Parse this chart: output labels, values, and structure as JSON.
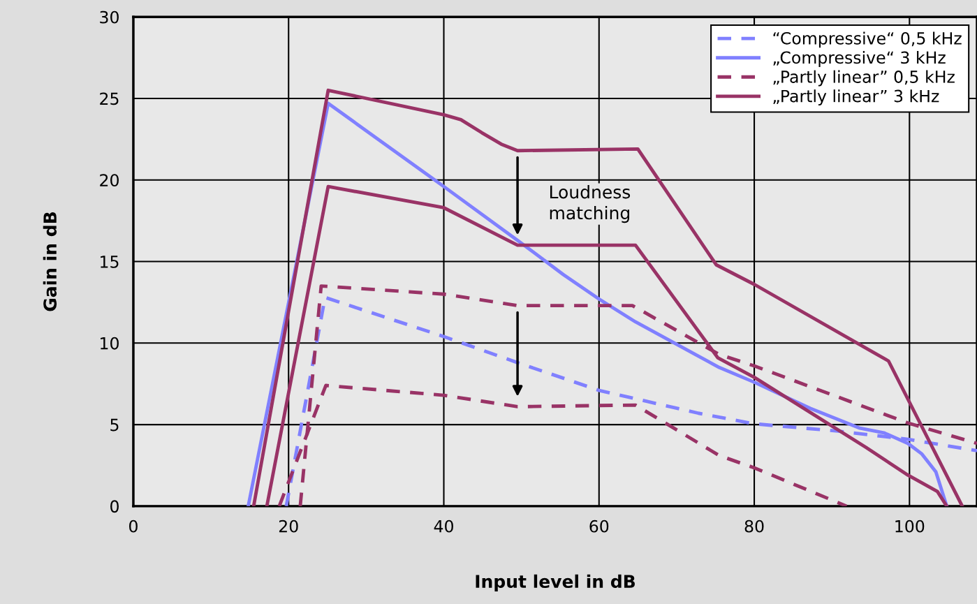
{
  "chart_data": {
    "type": "line",
    "xlabel": "Input level in dB",
    "ylabel": "Gain in dB",
    "xlim": [
      0,
      108.7
    ],
    "xticks": [
      0,
      20,
      40,
      60,
      80,
      100
    ],
    "ylim": [
      0,
      30
    ],
    "yticks": [
      0,
      5,
      10,
      15,
      20,
      25,
      30
    ],
    "grid": true,
    "legend": "top right",
    "marker": "none",
    "annotations": [
      {
        "text": "Loudness\nmatching",
        "x": 49.5,
        "y": 21.8
      }
    ],
    "series": [
      {
        "name": "“Compressive“ 0,5 kHz",
        "color": "#8080ff",
        "line_style": "dashed",
        "x": [
          19.7,
          24.7,
          40,
          49.5,
          60,
          72.8,
          80,
          90.8,
          99.8,
          108.7
        ],
        "values": [
          0,
          12.8,
          10.4,
          8.8,
          7.1,
          5.7,
          5.05,
          4.6,
          4.1,
          3.4
        ]
      },
      {
        "name": "„Compressive“ 3 kHz",
        "color": "#8080ff",
        "line_style": "solid",
        "x": [
          14.8,
          25.1,
          40,
          49.5,
          55.4,
          60,
          64.7,
          75.5,
          80,
          87.2,
          93.5,
          96.7,
          99.8,
          101.6,
          103.4,
          104.8
        ],
        "values": [
          0,
          24.7,
          19.6,
          16.3,
          14.2,
          12.7,
          11.3,
          8.5,
          7.6,
          6.0,
          4.8,
          4.5,
          3.85,
          3.2,
          2.1,
          0
        ]
      },
      {
        "name": "„Partly linear” 0,5 kHz",
        "color": "#993366",
        "line_style": "dashed",
        "x": [
          21.5,
          24.2,
          40,
          49.5,
          64.3,
          75.5,
          80,
          99.8,
          108.7
        ],
        "values": [
          0,
          13.5,
          13.0,
          12.3,
          12.3,
          9.3,
          8.6,
          5.1,
          3.85
        ]
      },
      {
        "name": "„Partly linear” 3 kHz",
        "color": "#993366",
        "line_style": "solid",
        "x": [
          15.5,
          25.1,
          40,
          42.2,
          44.9,
          47.4,
          49.5,
          65,
          75.1,
          80,
          97.3,
          106.8
        ],
        "values": [
          0,
          25.5,
          24.0,
          23.7,
          22.9,
          22.2,
          21.8,
          21.9,
          14.8,
          13.6,
          8.9,
          0
        ]
      },
      {
        "color": "#993366",
        "line_style": "dashed",
        "x": [
          18.8,
          24.8,
          40,
          49.5,
          64.7,
          75.5,
          80,
          91.9
        ],
        "values": [
          0,
          7.4,
          6.8,
          6.1,
          6.2,
          3.1,
          2.35,
          0
        ]
      },
      {
        "color": "#993366",
        "line_style": "solid",
        "x": [
          17.2,
          25.1,
          40,
          49.5,
          64.7,
          75.3,
          80,
          94.4,
          99.8,
          103.6,
          104.8
        ],
        "values": [
          0,
          19.6,
          18.3,
          16.0,
          16.0,
          9.1,
          7.9,
          3.6,
          1.9,
          0.9,
          0
        ]
      }
    ]
  }
}
